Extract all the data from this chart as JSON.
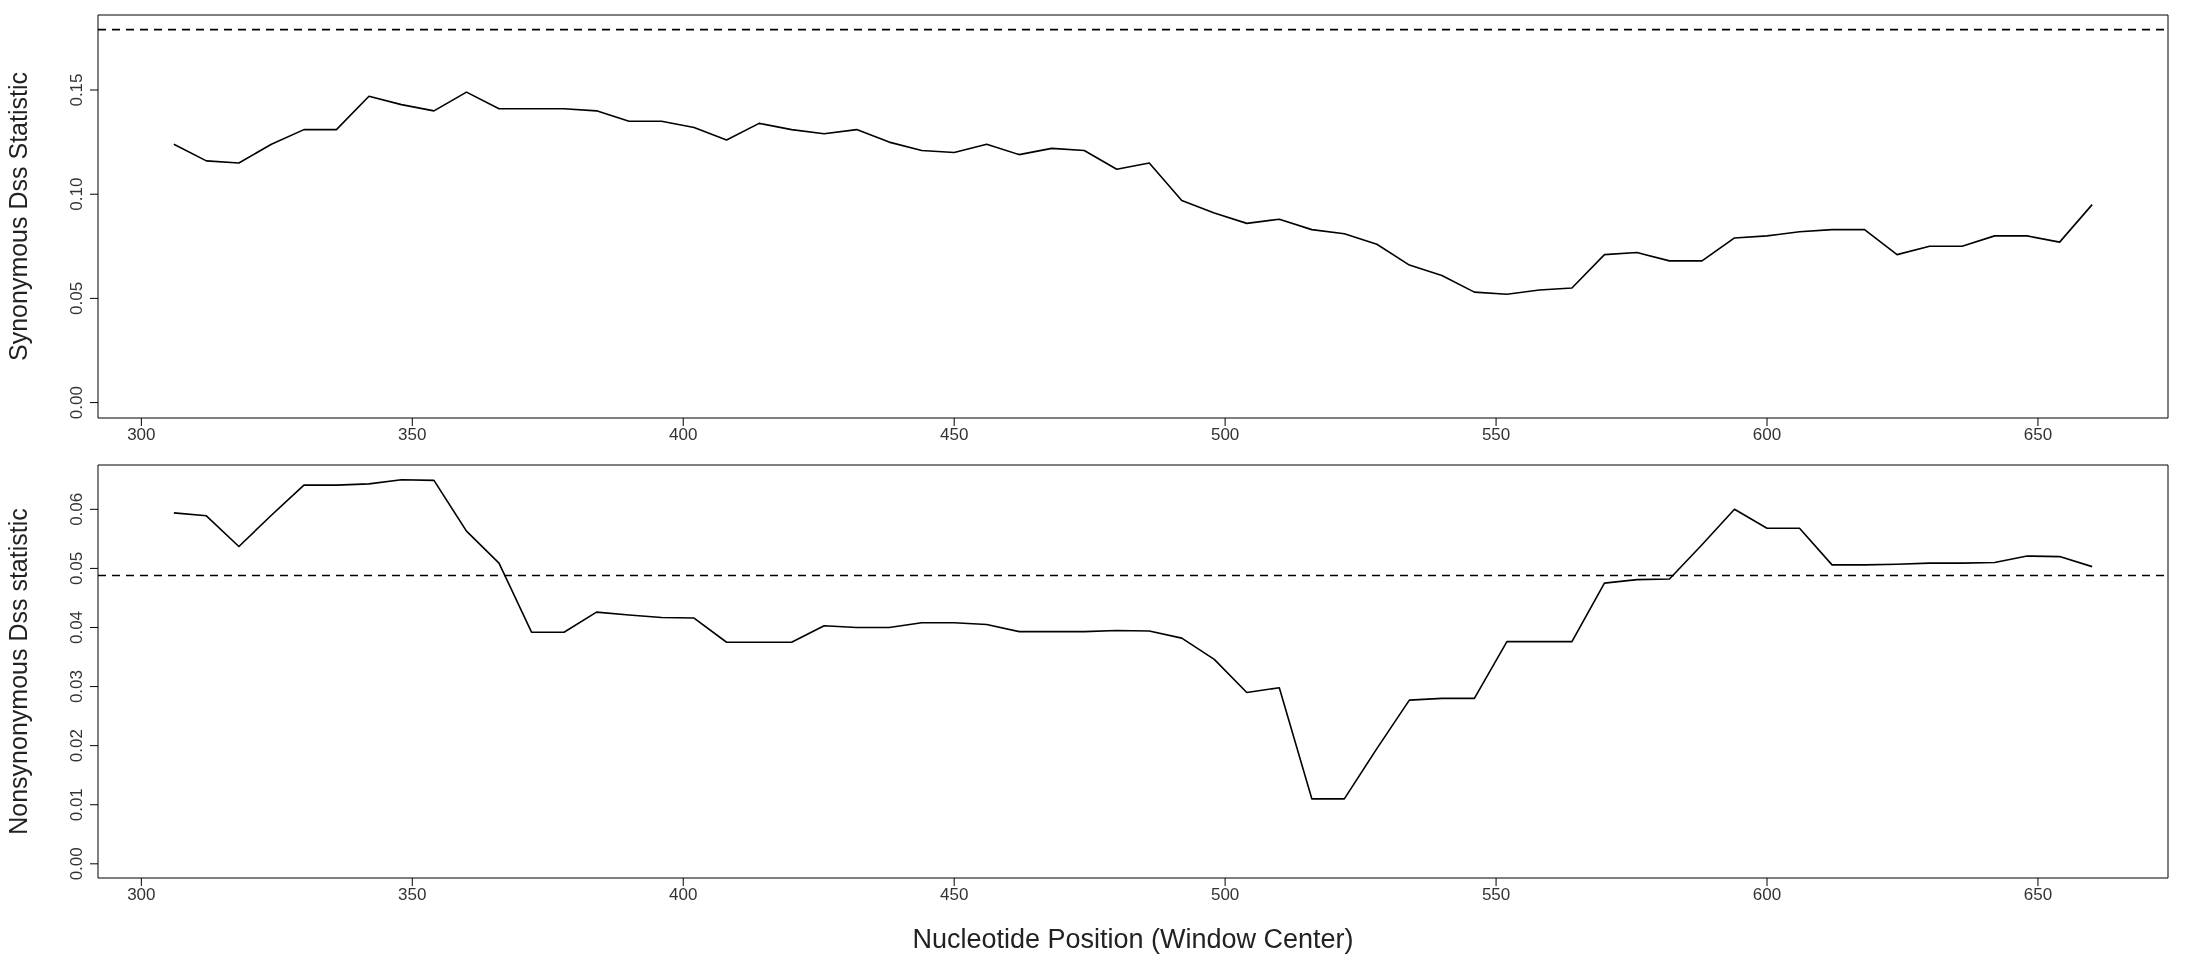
{
  "chart_data": [
    {
      "type": "line",
      "ylabel": "Synonymous Dss Statistic",
      "x": [
        306,
        312,
        318,
        324,
        330,
        336,
        342,
        348,
        354,
        360,
        366,
        372,
        378,
        384,
        390,
        396,
        402,
        408,
        414,
        420,
        426,
        432,
        438,
        444,
        450,
        456,
        462,
        468,
        474,
        480,
        486,
        492,
        498,
        504,
        510,
        516,
        522,
        528,
        534,
        540,
        546,
        552,
        558,
        564,
        570,
        576,
        582,
        588,
        594,
        600,
        606,
        612,
        618,
        624,
        630,
        636,
        642,
        648,
        654,
        660
      ],
      "series": [
        {
          "color": "#000000",
          "values": [
            0.124,
            0.116,
            0.115,
            0.124,
            0.131,
            0.131,
            0.147,
            0.143,
            0.14,
            0.149,
            0.141,
            0.141,
            0.141,
            0.14,
            0.135,
            0.135,
            0.132,
            0.126,
            0.134,
            0.131,
            0.129,
            0.131,
            0.125,
            0.121,
            0.12,
            0.124,
            0.119,
            0.122,
            0.121,
            0.112,
            0.115,
            0.097,
            0.091,
            0.086,
            0.088,
            0.083,
            0.081,
            0.076,
            0.066,
            0.061,
            0.053,
            0.052,
            0.054,
            0.055,
            0.071,
            0.072,
            0.068,
            0.068,
            0.079,
            0.08,
            0.082,
            0.083,
            0.083,
            0.071,
            0.075,
            0.075,
            0.08,
            0.08,
            0.077,
            0.095
          ]
        }
      ],
      "xlim": [
        292,
        674
      ],
      "xticks": [
        300,
        350,
        400,
        450,
        500,
        550,
        600,
        650
      ],
      "ylim": [
        -0.0074,
        0.186
      ],
      "yticks": [
        {
          "value": 0,
          "label": "0.00"
        },
        {
          "value": 0.05,
          "label": "0.05"
        },
        {
          "value": 0.1,
          "label": "0.10"
        },
        {
          "value": 0.15,
          "label": "0.15"
        }
      ],
      "ref_lines": [
        {
          "axis": "y",
          "value": 0.179,
          "color": "#000000",
          "line_style": "dashed"
        }
      ],
      "grid": false,
      "legend": false
    },
    {
      "type": "line",
      "xlabel": "Nucleotide Position (Window Center)",
      "ylabel": "Nonsynonymous Dss statistic",
      "x": [
        306,
        312,
        318,
        324,
        330,
        336,
        342,
        348,
        354,
        360,
        366,
        372,
        378,
        384,
        390,
        396,
        402,
        408,
        414,
        420,
        426,
        432,
        438,
        444,
        450,
        456,
        462,
        468,
        474,
        480,
        486,
        492,
        498,
        504,
        510,
        516,
        522,
        528,
        534,
        540,
        546,
        552,
        558,
        564,
        570,
        576,
        582,
        588,
        594,
        600,
        606,
        612,
        618,
        624,
        630,
        636,
        642,
        648,
        654,
        660
      ],
      "series": [
        {
          "color": "#000000",
          "values": [
            0.0594,
            0.0589,
            0.0537,
            0.059,
            0.0641,
            0.0641,
            0.0643,
            0.065,
            0.0649,
            0.0563,
            0.0509,
            0.0392,
            0.0392,
            0.0426,
            0.0421,
            0.0417,
            0.0416,
            0.0375,
            0.0375,
            0.0375,
            0.0403,
            0.04,
            0.04,
            0.0408,
            0.0408,
            0.0405,
            0.0393,
            0.0393,
            0.0393,
            0.0395,
            0.0394,
            0.0382,
            0.0346,
            0.029,
            0.0298,
            0.011,
            0.011,
            0.0195,
            0.0277,
            0.028,
            0.028,
            0.0376,
            0.0376,
            0.0376,
            0.0475,
            0.0481,
            0.0482,
            0.054,
            0.06,
            0.0568,
            0.0568,
            0.0506,
            0.0506,
            0.0507,
            0.0509,
            0.0509,
            0.051,
            0.0521,
            0.052,
            0.0503
          ]
        }
      ],
      "xlim": [
        292,
        674
      ],
      "xticks": [
        300,
        350,
        400,
        450,
        500,
        550,
        600,
        650
      ],
      "ylim": [
        -0.0024,
        0.0675
      ],
      "yticks": [
        {
          "value": 0,
          "label": "0.00"
        },
        {
          "value": 0.01,
          "label": "0.01"
        },
        {
          "value": 0.02,
          "label": "0.02"
        },
        {
          "value": 0.03,
          "label": "0.03"
        },
        {
          "value": 0.04,
          "label": "0.04"
        },
        {
          "value": 0.05,
          "label": "0.05"
        },
        {
          "value": 0.06,
          "label": "0.06"
        }
      ],
      "ref_lines": [
        {
          "axis": "y",
          "value": 0.0488,
          "color": "#000000",
          "line_style": "dashed"
        }
      ],
      "grid": false,
      "legend": false
    }
  ]
}
